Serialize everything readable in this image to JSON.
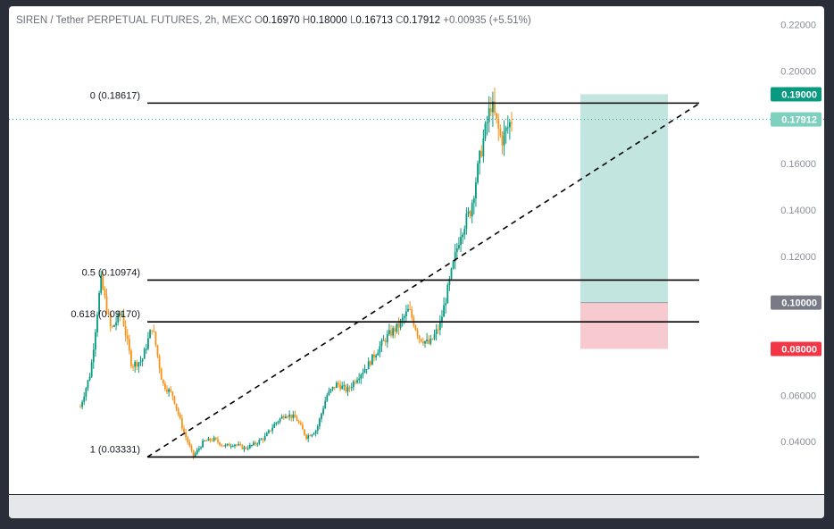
{
  "header": {
    "title": "SIREN / Tether PERPETUAL FUTURES, 2h, MEXC",
    "o_label": "O",
    "o_value": "0.16970",
    "h_label": "H",
    "h_value": "0.18000",
    "l_label": "L",
    "l_value": "0.16713",
    "c_label": "C",
    "c_value": "0.17912",
    "change": "+0.00935 (+5.51%)"
  },
  "price_labels": [
    {
      "text": "0.19000",
      "color": "#089981",
      "price": 0.19
    },
    {
      "text": "0.17912",
      "color": "#7fd0bf",
      "price": 0.17912
    },
    {
      "text": "0.10000",
      "color": "#787b86",
      "price": 0.1
    },
    {
      "text": "0.08000",
      "color": "#f23645",
      "price": 0.08
    }
  ],
  "chart_data": {
    "type": "candlestick",
    "y_axis_ticks": [
      "0.22000",
      "0.20000",
      "0.16000",
      "0.14000",
      "0.12000",
      "0.06000",
      "0.04000"
    ],
    "ylim": [
      0.0165,
      0.228
    ],
    "grid": false,
    "last_price": 0.17912,
    "price_series": [
      0.055,
      0.07,
      0.11,
      0.088,
      0.096,
      0.073,
      0.075,
      0.09,
      0.065,
      0.06,
      0.045,
      0.0335,
      0.04,
      0.041,
      0.038,
      0.039,
      0.037,
      0.039,
      0.042,
      0.048,
      0.052,
      0.05,
      0.042,
      0.045,
      0.06,
      0.065,
      0.062,
      0.068,
      0.073,
      0.08,
      0.086,
      0.09,
      0.097,
      0.085,
      0.082,
      0.09,
      0.11,
      0.13,
      0.14,
      0.165,
      0.186,
      0.17,
      0.179
    ],
    "fib_levels": [
      {
        "label": "0 (0.18617)",
        "price": 0.18617
      },
      {
        "label": "0.5 (0.10974)",
        "price": 0.10974
      },
      {
        "label": "0.618 (0.09170)",
        "price": 0.0917
      },
      {
        "label": "1 (0.03331)",
        "price": 0.03331
      }
    ],
    "trend_line": {
      "from_price": 0.0333,
      "to_price": 0.186
    },
    "position": {
      "target": 0.19,
      "entry": 0.1,
      "stop": 0.08
    }
  }
}
